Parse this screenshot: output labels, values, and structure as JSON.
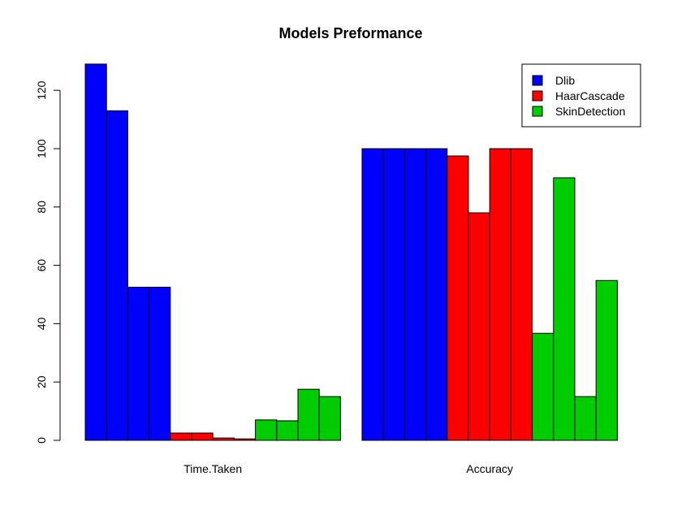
{
  "chart_data": {
    "type": "bar",
    "title": "Models Preformance",
    "xlabel": "",
    "ylabel": "",
    "categories": [
      "Time.Taken",
      "Accuracy"
    ],
    "ylim": [
      0,
      130
    ],
    "yticks": [
      0,
      20,
      40,
      60,
      80,
      100,
      120
    ],
    "grid": false,
    "legend_position": "top-right",
    "series": [
      {
        "name": "Dlib",
        "color": "#0000FF",
        "values": [
          [
            129,
            113,
            52.5,
            52.5
          ],
          [
            100,
            100,
            100,
            100
          ]
        ]
      },
      {
        "name": "HaarCascade",
        "color": "#FF0000",
        "values": [
          [
            2.5,
            2.5,
            0.8,
            0.5
          ],
          [
            97.5,
            78,
            100,
            100
          ]
        ]
      },
      {
        "name": "SkinDetection",
        "color": "#00CD00",
        "values": [
          [
            7,
            6.7,
            17.5,
            15
          ],
          [
            36.7,
            90,
            15,
            54.8
          ]
        ]
      }
    ]
  }
}
